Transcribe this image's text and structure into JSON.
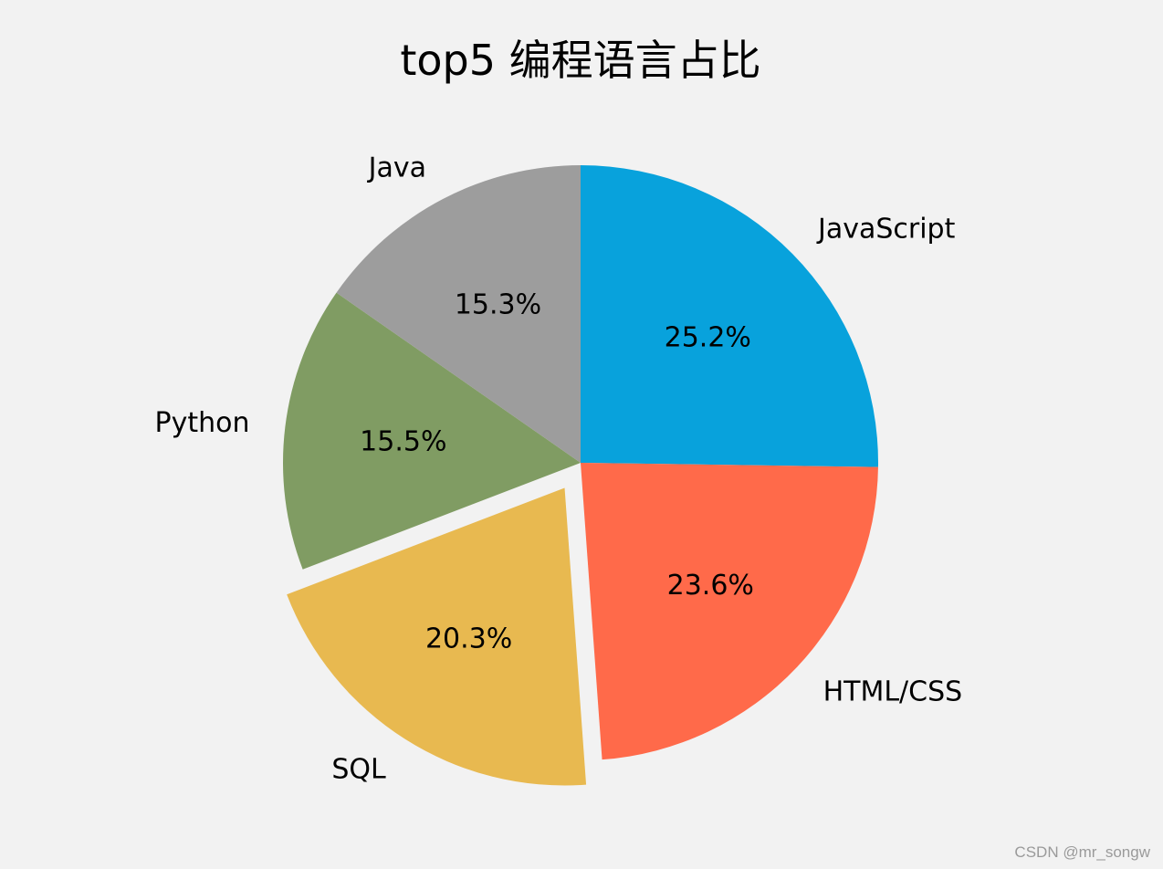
{
  "chart_data": {
    "type": "pie",
    "title": "top5 编程语言占比",
    "start_angle": 90,
    "counterclock": false,
    "categories": [
      "JavaScript",
      "HTML/CSS",
      "SQL",
      "Python",
      "Java"
    ],
    "values": [
      25.2,
      23.6,
      20.3,
      15.5,
      15.3
    ],
    "value_labels": [
      "25.2%",
      "23.6%",
      "20.3%",
      "15.5%",
      "15.3%"
    ],
    "colors": [
      "#08a2dc",
      "#ff6a4a",
      "#e8b950",
      "#809c63",
      "#9d9d9d"
    ],
    "explode": [
      0,
      0,
      0.1,
      0,
      0
    ],
    "legend": null
  },
  "background": "#f2f2f2",
  "watermark": "CSDN @mr_songw"
}
